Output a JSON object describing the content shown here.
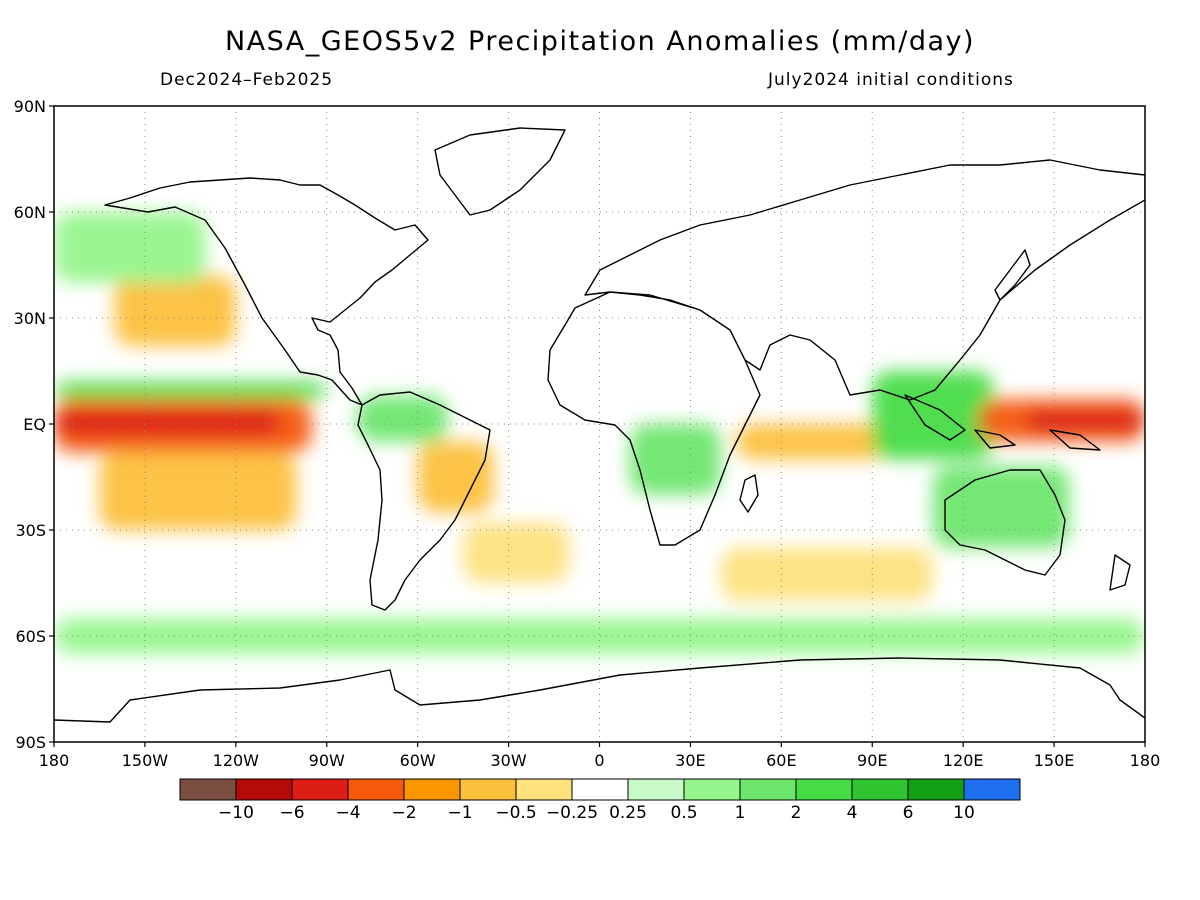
{
  "title": "NASA_GEOS5v2 Precipitation Anomalies (mm/day)",
  "period": "Dec2024–Feb2025",
  "init": "July2024 initial conditions",
  "lat_ticks": [
    {
      "lat": 90,
      "label": "90N"
    },
    {
      "lat": 60,
      "label": "60N"
    },
    {
      "lat": 30,
      "label": "30N"
    },
    {
      "lat": 0,
      "label": "EQ"
    },
    {
      "lat": -30,
      "label": "30S"
    },
    {
      "lat": -60,
      "label": "60S"
    },
    {
      "lat": -90,
      "label": "90S"
    }
  ],
  "lon_ticks": [
    {
      "lon": -180,
      "label": "180"
    },
    {
      "lon": -150,
      "label": "150W"
    },
    {
      "lon": -120,
      "label": "120W"
    },
    {
      "lon": -90,
      "label": "90W"
    },
    {
      "lon": -60,
      "label": "60W"
    },
    {
      "lon": -30,
      "label": "30W"
    },
    {
      "lon": 0,
      "label": "0"
    },
    {
      "lon": 30,
      "label": "30E"
    },
    {
      "lon": 60,
      "label": "60E"
    },
    {
      "lon": 90,
      "label": "90E"
    },
    {
      "lon": 120,
      "label": "120E"
    },
    {
      "lon": 150,
      "label": "150E"
    },
    {
      "lon": 180,
      "label": "180"
    }
  ],
  "colorbar": {
    "colors": [
      "#7a4e40",
      "#b40a0a",
      "#dc1e14",
      "#f55a0a",
      "#fa9600",
      "#fcc03c",
      "#fde27e",
      "#ffffff",
      "#c8fac8",
      "#96f58c",
      "#6ee66e",
      "#46dc46",
      "#30c430",
      "#14a014",
      "#1e6ef0"
    ],
    "labels": [
      "−10",
      "−6",
      "−4",
      "−2",
      "−1",
      "−0.5",
      "−0.25",
      "0.25",
      "0.5",
      "1",
      "2",
      "4",
      "6",
      "10"
    ]
  },
  "anomaly_regions": [
    {
      "name": "equatorial-east-pacific-dry",
      "lon": [
        -180,
        -95
      ],
      "lat": [
        -8,
        7
      ],
      "value": -4
    },
    {
      "name": "equatorial-east-pacific-core",
      "lon": [
        -180,
        -105
      ],
      "lat": [
        -3,
        4
      ],
      "value": -6
    },
    {
      "name": "south-pacific-dry-band",
      "lon": [
        -165,
        -100
      ],
      "lat": [
        -30,
        -8
      ],
      "value": -1
    },
    {
      "name": "north-pacific-dry",
      "lon": [
        -160,
        -120
      ],
      "lat": [
        22,
        42
      ],
      "value": -1
    },
    {
      "name": "north-pacific-wet-band",
      "lon": [
        -180,
        -130
      ],
      "lat": [
        40,
        60
      ],
      "value": 0.5
    },
    {
      "name": "itcz-pacific-wet",
      "lon": [
        -180,
        -90
      ],
      "lat": [
        7,
        12
      ],
      "value": 2
    },
    {
      "name": "amazon-wet",
      "lon": [
        -80,
        -50
      ],
      "lat": [
        -5,
        8
      ],
      "value": 1
    },
    {
      "name": "brazil-dry",
      "lon": [
        -60,
        -35
      ],
      "lat": [
        -25,
        -5
      ],
      "value": -1
    },
    {
      "name": "south-atlantic-dry",
      "lon": [
        -45,
        -10
      ],
      "lat": [
        -45,
        -28
      ],
      "value": -0.5
    },
    {
      "name": "central-africa-wet",
      "lon": [
        10,
        40
      ],
      "lat": [
        -20,
        0
      ],
      "value": 1
    },
    {
      "name": "indian-ocean-dry",
      "lon": [
        45,
        95
      ],
      "lat": [
        -10,
        0
      ],
      "value": -1
    },
    {
      "name": "southeast-asia-wet",
      "lon": [
        90,
        130
      ],
      "lat": [
        -10,
        15
      ],
      "value": 2
    },
    {
      "name": "west-pacific-dry",
      "lon": [
        125,
        180
      ],
      "lat": [
        -5,
        7
      ],
      "value": -4
    },
    {
      "name": "west-pacific-core",
      "lon": [
        140,
        180
      ],
      "lat": [
        -2,
        4
      ],
      "value": -6
    },
    {
      "name": "australia-wet",
      "lon": [
        110,
        155
      ],
      "lat": [
        -35,
        -12
      ],
      "value": 1
    },
    {
      "name": "southern-ocean-dry",
      "lon": [
        40,
        110
      ],
      "lat": [
        -50,
        -35
      ],
      "value": -0.5
    },
    {
      "name": "southern-ocean-wet",
      "lon": [
        -180,
        180
      ],
      "lat": [
        -65,
        -55
      ],
      "value": 0.5
    }
  ],
  "colors": {
    "coast": "#000000",
    "grid": "#888888"
  }
}
